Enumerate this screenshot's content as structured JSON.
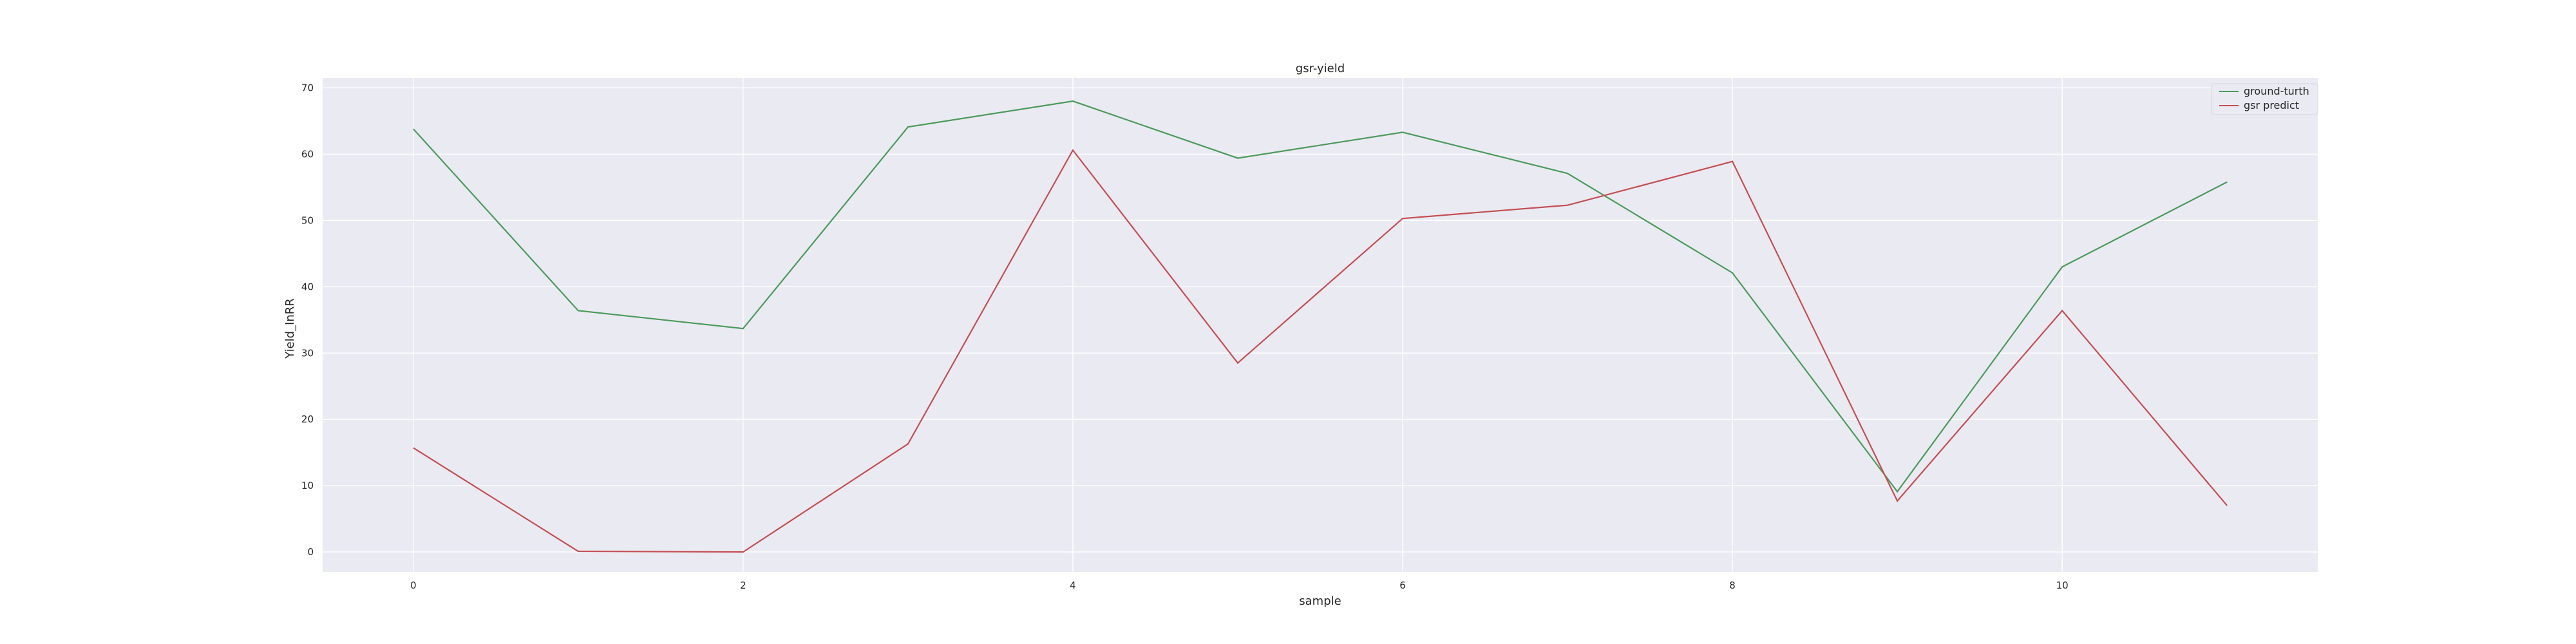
{
  "chart_data": {
    "type": "line",
    "title": "gsr-yield",
    "xlabel": "sample",
    "ylabel": "Yield_InRR",
    "x": [
      0,
      1,
      2,
      3,
      4,
      5,
      6,
      7,
      8,
      9,
      10,
      11
    ],
    "series": [
      {
        "name": "ground-turth",
        "color": "#4C9A5B",
        "values": [
          63.8,
          36.4,
          33.7,
          64.1,
          68.0,
          59.4,
          63.3,
          57.1,
          42.1,
          9.1,
          43.0,
          55.8
        ]
      },
      {
        "name": "gsr predict",
        "color": "#C44E52",
        "values": [
          15.7,
          0.1,
          0.0,
          16.3,
          60.6,
          28.5,
          50.3,
          52.3,
          58.9,
          7.7,
          36.4,
          7.0
        ]
      }
    ],
    "xlim": [
      -0.55,
      11.55
    ],
    "ylim": [
      -3.0,
      71.5
    ],
    "x_ticks": [
      0,
      2,
      4,
      6,
      8,
      10
    ],
    "y_ticks": [
      0,
      10,
      20,
      30,
      40,
      50,
      60,
      70
    ],
    "grid": true,
    "legend_position": "top-right",
    "background_color": "#EAEAF2"
  }
}
